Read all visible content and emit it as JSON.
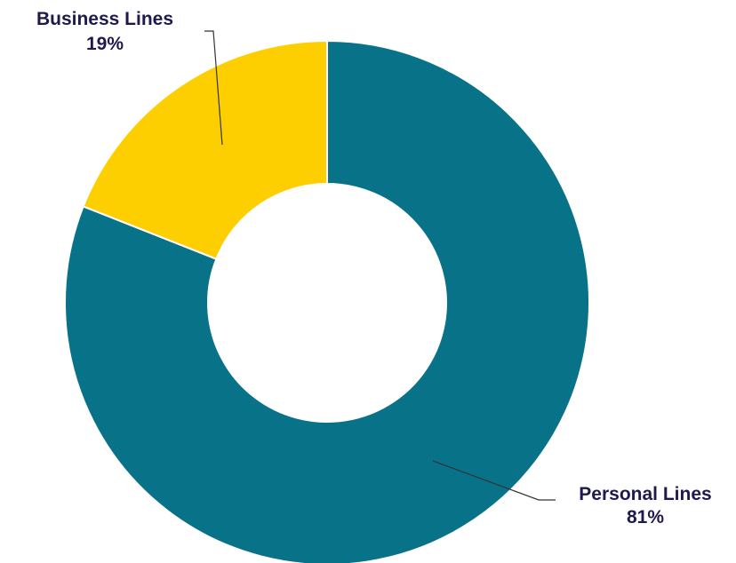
{
  "chart_data": {
    "type": "pie",
    "donut": true,
    "title": "",
    "slices": [
      {
        "label": "Personal Lines",
        "pct_label": "81%",
        "value": 81,
        "color": "#087289"
      },
      {
        "label": "Business Lines",
        "pct_label": "19%",
        "value": 19,
        "color": "#FDCF00"
      }
    ],
    "label_color": "#1F1A4E",
    "leader_line_color": "#333333",
    "start_angle_deg": 0,
    "direction": "clockwise",
    "legend": "none"
  }
}
